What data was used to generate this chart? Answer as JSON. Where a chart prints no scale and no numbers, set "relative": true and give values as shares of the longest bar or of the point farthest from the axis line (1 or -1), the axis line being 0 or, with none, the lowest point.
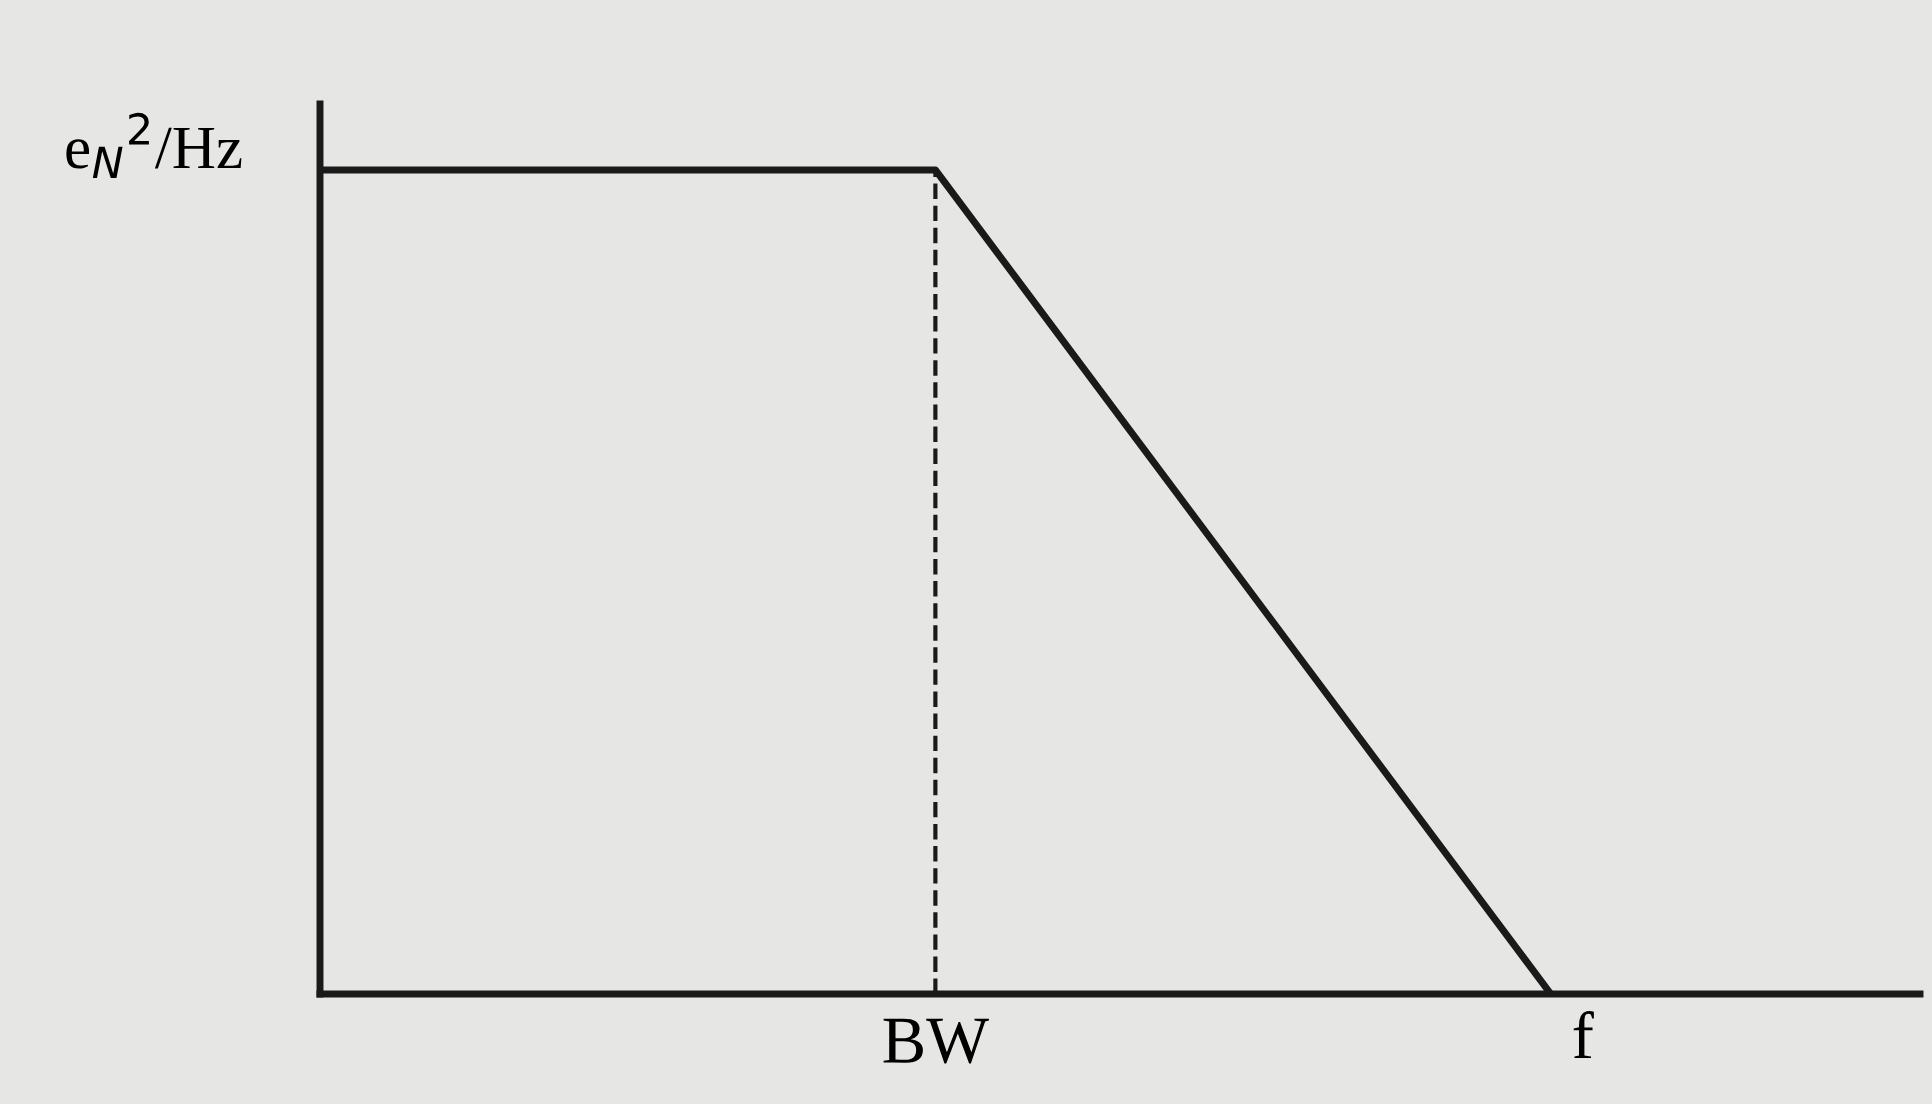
{
  "chart_data": {
    "type": "line",
    "relative": true,
    "xlabel": "f",
    "ylabel": "e$_{N}$$^{2}$/Hz",
    "categories": [
      null,
      null,
      null
    ],
    "annotations": [
      "BW"
    ],
    "series": [
      {
        "color": "#1a1a1a",
        "values": [
          1,
          1,
          0
        ]
      }
    ],
    "marker": "none",
    "line_style": "solid"
  }
}
